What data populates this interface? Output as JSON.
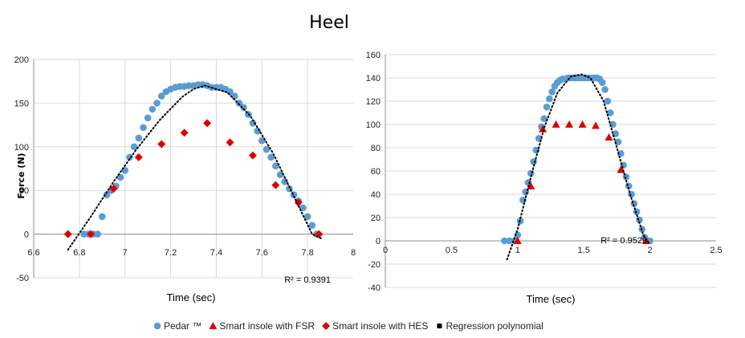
{
  "chart_data": [
    {
      "type": "scatter",
      "title": "Heel",
      "xlabel": "Time (sec)",
      "ylabel": "Force (N)",
      "xlim": [
        6.6,
        8
      ],
      "ylim": [
        -50,
        200
      ],
      "xticks": [
        "6.6",
        "6.8",
        "7",
        "7.2",
        "7.4",
        "7.6",
        "7.8",
        "8"
      ],
      "yticks": [
        "-50",
        "0",
        "50",
        "100",
        "150",
        "200"
      ],
      "annotation": "R² = 0.9391",
      "grid": true,
      "series": [
        {
          "name": "Pedar ™",
          "marker": "circle",
          "color": "#5b9bd5",
          "x": [
            6.82,
            6.84,
            6.86,
            6.88,
            6.9,
            6.92,
            6.94,
            6.96,
            6.98,
            7.0,
            7.02,
            7.04,
            7.06,
            7.08,
            7.1,
            7.12,
            7.14,
            7.16,
            7.18,
            7.2,
            7.22,
            7.24,
            7.26,
            7.28,
            7.3,
            7.32,
            7.34,
            7.36,
            7.38,
            7.4,
            7.42,
            7.44,
            7.46,
            7.48,
            7.5,
            7.52,
            7.54,
            7.56,
            7.58,
            7.6,
            7.62,
            7.64,
            7.66,
            7.68,
            7.7,
            7.72,
            7.74,
            7.76,
            7.78,
            7.8,
            7.82,
            7.84
          ],
          "y": [
            0,
            0,
            0,
            0,
            20,
            45,
            50,
            55,
            65,
            73,
            88,
            100,
            110,
            122,
            133,
            143,
            150,
            158,
            163,
            166,
            168,
            169,
            169,
            170,
            170,
            171,
            171,
            170,
            168,
            168,
            168,
            166,
            163,
            158,
            150,
            145,
            137,
            127,
            118,
            107,
            97,
            88,
            78,
            68,
            60,
            52,
            45,
            38,
            30,
            20,
            10,
            0
          ]
        },
        {
          "name": "Smart insole with HES",
          "marker": "diamond",
          "color": "#e00000",
          "x": [
            6.75,
            6.85,
            6.95,
            7.06,
            7.16,
            7.26,
            7.36,
            7.46,
            7.56,
            7.66,
            7.76,
            7.85
          ],
          "y": [
            0,
            0,
            52,
            88,
            103,
            116,
            127,
            105,
            90,
            56,
            36,
            0
          ]
        },
        {
          "name": "Regression polynomial",
          "marker": "dotted-line",
          "color": "#000000",
          "x": [
            6.75,
            6.85,
            6.95,
            7.05,
            7.15,
            7.25,
            7.3,
            7.35,
            7.45,
            7.55,
            7.65,
            7.75,
            7.82,
            7.86
          ],
          "y": [
            -18,
            20,
            60,
            97,
            130,
            157,
            166,
            170,
            162,
            135,
            92,
            38,
            0,
            -5
          ]
        }
      ]
    },
    {
      "type": "scatter",
      "title": "",
      "xlabel": "Time (sec)",
      "ylabel": "",
      "xlim": [
        0,
        2.5
      ],
      "ylim": [
        -40,
        160
      ],
      "xticks": [
        "0",
        "0.5",
        "1",
        "1.5",
        "2",
        "2.5"
      ],
      "yticks": [
        "-40",
        "-20",
        "0",
        "20",
        "40",
        "60",
        "80",
        "100",
        "120",
        "140",
        "160"
      ],
      "annotation": "R² = 0.9529",
      "grid": true,
      "series": [
        {
          "name": "Pedar ™",
          "marker": "circle",
          "color": "#5b9bd5",
          "x": [
            0.9,
            0.94,
            0.98,
            1.0,
            1.02,
            1.04,
            1.06,
            1.08,
            1.1,
            1.12,
            1.14,
            1.16,
            1.18,
            1.2,
            1.22,
            1.24,
            1.26,
            1.28,
            1.3,
            1.32,
            1.34,
            1.36,
            1.38,
            1.4,
            1.42,
            1.44,
            1.46,
            1.48,
            1.5,
            1.52,
            1.54,
            1.56,
            1.58,
            1.6,
            1.62,
            1.64,
            1.66,
            1.68,
            1.7,
            1.72,
            1.74,
            1.76,
            1.78,
            1.8,
            1.82,
            1.84,
            1.86,
            1.88,
            1.9,
            1.92,
            1.94,
            1.96,
            1.98,
            2.0
          ],
          "y": [
            0,
            0,
            0,
            5,
            17,
            35,
            42,
            50,
            58,
            68,
            78,
            88,
            98,
            105,
            115,
            122,
            128,
            133,
            136,
            138,
            139,
            139,
            140,
            140,
            140,
            140,
            140,
            140,
            140,
            140,
            140,
            140,
            140,
            140,
            139,
            136,
            130,
            120,
            110,
            100,
            92,
            85,
            75,
            65,
            55,
            47,
            40,
            32,
            25,
            18,
            10,
            3,
            0,
            0
          ]
        },
        {
          "name": "Smart insole with FSR",
          "marker": "triangle",
          "color": "#e00000",
          "x": [
            1.0,
            1.1,
            1.19,
            1.29,
            1.39,
            1.49,
            1.59,
            1.69,
            1.78,
            1.97
          ],
          "y": [
            0,
            47,
            96,
            100,
            100,
            100,
            99,
            89,
            61,
            0
          ]
        },
        {
          "name": "Regression polynomial",
          "marker": "dotted-line",
          "color": "#000000",
          "x": [
            0.92,
            1.0,
            1.1,
            1.2,
            1.3,
            1.4,
            1.48,
            1.55,
            1.65,
            1.75,
            1.85,
            1.95,
            2.0
          ],
          "y": [
            -16,
            10,
            55,
            97,
            127,
            141,
            143,
            140,
            120,
            80,
            40,
            5,
            -3
          ]
        }
      ]
    }
  ],
  "legend": [
    {
      "name": "Pedar ™",
      "marker": "circle",
      "color": "#5b9bd5"
    },
    {
      "name": "Smart insole with FSR",
      "marker": "triangle",
      "color": "#e00000"
    },
    {
      "name": "Smart insole with HES",
      "marker": "diamond",
      "color": "#e00000"
    },
    {
      "name": "Regression polynomial",
      "marker": "square",
      "color": "#000000"
    }
  ]
}
